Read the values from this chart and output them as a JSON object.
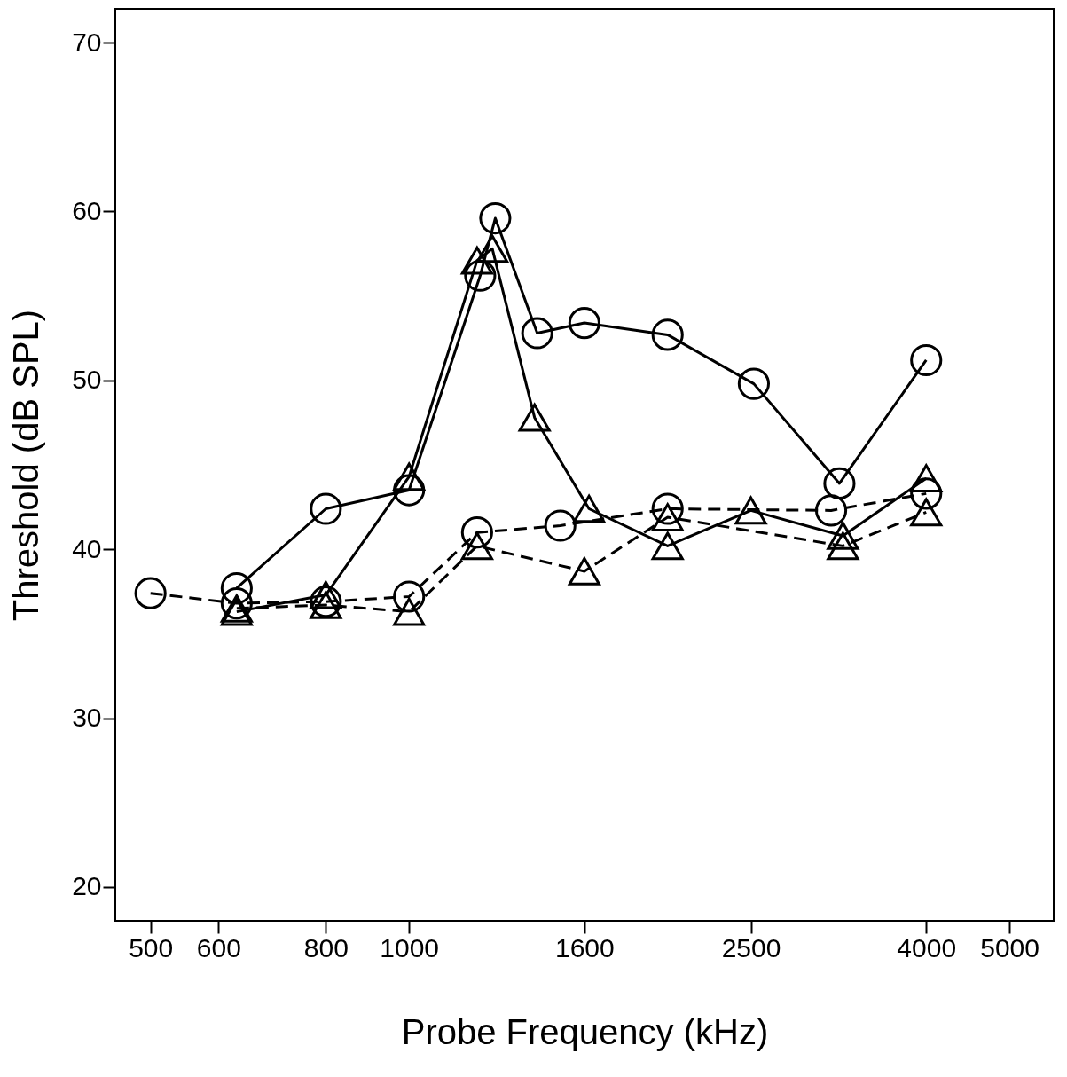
{
  "chart_data": {
    "type": "line",
    "xlabel": "Probe Frequency (kHz)",
    "ylabel": "Threshold (dB SPL)",
    "log": "x",
    "xlim": [
      455,
      5630
    ],
    "ylim": [
      18,
      72
    ],
    "xticks": [
      500,
      600,
      800,
      1000,
      1600,
      2500,
      4000,
      5000
    ],
    "yticks": [
      20,
      30,
      40,
      50,
      60,
      70
    ],
    "grid": false,
    "legend": false,
    "series": [
      {
        "color": "#000000",
        "marker": "circle",
        "line_style": "solid",
        "x": [
          630,
          800,
          1000,
          1210,
          1260,
          1410,
          1600,
          2000,
          2520,
          3170,
          4000
        ],
        "values": [
          37.7,
          42.4,
          43.5,
          56.2,
          59.6,
          52.8,
          53.4,
          52.7,
          49.8,
          43.9,
          51.2
        ]
      },
      {
        "color": "#000000",
        "marker": "triangle",
        "line_style": "solid",
        "x": [
          630,
          800,
          1000,
          1200,
          1250,
          1400,
          1620,
          2000,
          2500,
          3200,
          4000
        ],
        "values": [
          36.3,
          37.3,
          44.3,
          57.1,
          57.8,
          47.8,
          42.4,
          40.2,
          42.3,
          40.8,
          44.2
        ]
      },
      {
        "color": "#000000",
        "marker": "circle",
        "line_style": "dashed",
        "x": [
          500,
          630,
          800,
          1000,
          1200,
          1500,
          2000,
          3100,
          4000
        ],
        "values": [
          37.4,
          36.8,
          36.9,
          37.2,
          41.0,
          41.4,
          42.4,
          42.3,
          43.3
        ]
      },
      {
        "color": "#000000",
        "marker": "triangle",
        "line_style": "dashed",
        "x": [
          630,
          800,
          1000,
          1200,
          1600,
          2000,
          3200,
          4000
        ],
        "values": [
          36.5,
          36.7,
          36.3,
          40.2,
          38.7,
          41.9,
          40.2,
          42.2
        ]
      }
    ]
  }
}
